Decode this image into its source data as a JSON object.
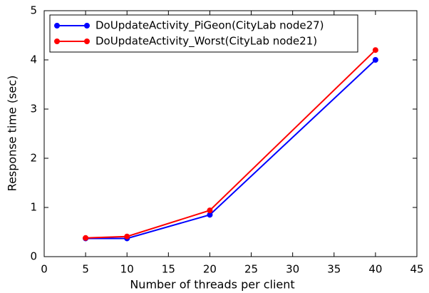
{
  "chart_data": {
    "type": "line",
    "xlabel": "Number of threads per client",
    "ylabel": "Response time (sec)",
    "x": [
      5,
      10,
      20,
      40
    ],
    "series": [
      {
        "name": "DoUpdateActivity_PiGeon(CityLab node27)",
        "color": "#0000ff",
        "values": [
          0.37,
          0.37,
          0.85,
          4.0
        ]
      },
      {
        "name": "DoUpdateActivity_Worst(CityLab node21)",
        "color": "#ff0000",
        "values": [
          0.38,
          0.41,
          0.94,
          4.2
        ]
      }
    ],
    "xlim": [
      0,
      45
    ],
    "xticks": [
      0,
      5,
      10,
      15,
      20,
      25,
      30,
      35,
      40,
      45
    ],
    "ylim": [
      0,
      5
    ],
    "yticks": [
      0,
      1,
      2,
      3,
      4,
      5
    ],
    "legend": "upper left"
  }
}
